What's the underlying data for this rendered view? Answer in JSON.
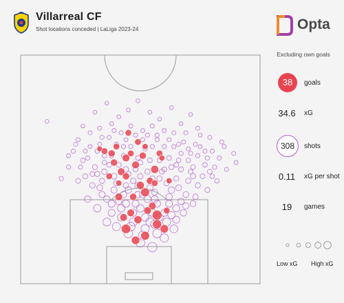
{
  "header": {
    "title": "Villarreal CF",
    "subtitle": "Shot locations conceded | LaLiga 2023-24"
  },
  "brand": {
    "name": "Opta"
  },
  "stats": {
    "note": "Excluding own goals",
    "goals_value": "38",
    "goals_label": "goals",
    "xg_value": "34.6",
    "xg_label": "xG",
    "shots_value": "308",
    "shots_label": "shots",
    "xg_per_shot_value": "0.11",
    "xg_per_shot_label": "xG per shot",
    "games_value": "19",
    "games_label": "games"
  },
  "legend": {
    "low": "Low xG",
    "high": "High xG"
  },
  "colors": {
    "background": "#f4f4f4",
    "goal": "#e8444f",
    "shot": "#b55ad0",
    "crest_yellow": "#f6d400",
    "crest_blue": "#1f3a8a",
    "opta_orange": "#f08a2c",
    "opta_purple": "#a43ea8"
  },
  "icons": {
    "crest": "villarreal-crest-icon",
    "brand": "opta-logo-icon"
  },
  "chart_data": {
    "type": "scatter",
    "x_units": "pitch width (0 = left touchline, 100 = right touchline)",
    "y_units": "distance from goal line (0 = goal line, 100 = halfway line)",
    "goals": [
      [
        44,
        24
      ],
      [
        52,
        21
      ],
      [
        57,
        30
      ],
      [
        49,
        28
      ],
      [
        60,
        24
      ],
      [
        55,
        34
      ],
      [
        47,
        38
      ],
      [
        52,
        40
      ],
      [
        42,
        49
      ],
      [
        44,
        47
      ],
      [
        56,
        50
      ],
      [
        58,
        57
      ],
      [
        44,
        55
      ],
      [
        39,
        53
      ],
      [
        52,
        60
      ],
      [
        35,
        58
      ],
      [
        49,
        62
      ],
      [
        41,
        38
      ],
      [
        45,
        66
      ],
      [
        41,
        44
      ],
      [
        57,
        26
      ],
      [
        48,
        19
      ],
      [
        38,
        57
      ],
      [
        53,
        32
      ],
      [
        61,
        32
      ],
      [
        50,
        43
      ],
      [
        46,
        31
      ],
      [
        43,
        29
      ],
      [
        59,
        55
      ],
      [
        37,
        47
      ],
      [
        54,
        45
      ],
      [
        48,
        52
      ],
      [
        40,
        60
      ],
      [
        46,
        57
      ],
      [
        56,
        44
      ],
      [
        51,
        56
      ],
      [
        62,
        45
      ],
      [
        33,
        59
      ]
    ],
    "goal_xg": [
      0.55,
      0.45,
      0.6,
      0.35,
      0.4,
      0.3,
      0.25,
      0.45,
      0.3,
      0.25,
      0.35,
      0.2,
      0.3,
      0.25,
      0.15,
      0.2,
      0.2,
      0.3,
      0.2,
      0.15,
      0.5,
      0.4,
      0.25,
      0.3,
      0.2,
      0.35,
      0.3,
      0.3,
      0.15,
      0.2,
      0.25,
      0.3,
      0.2,
      0.2,
      0.2,
      0.25,
      0.15,
      0.12
    ],
    "shots": [
      [
        22,
        58
      ],
      [
        17,
        46
      ],
      [
        11,
        71
      ],
      [
        23,
        61
      ],
      [
        25,
        51
      ],
      [
        28,
        55
      ],
      [
        30,
        48
      ],
      [
        34,
        45
      ],
      [
        33,
        61
      ],
      [
        35,
        56
      ],
      [
        37,
        64
      ],
      [
        38,
        70
      ],
      [
        40,
        61
      ],
      [
        41,
        52
      ],
      [
        43,
        60
      ],
      [
        43,
        56
      ],
      [
        44,
        43
      ],
      [
        45,
        48
      ],
      [
        46,
        60
      ],
      [
        47,
        45
      ],
      [
        48,
        50
      ],
      [
        49,
        55
      ],
      [
        50,
        47
      ],
      [
        50,
        53
      ],
      [
        51,
        63
      ],
      [
        52,
        59
      ],
      [
        53,
        49
      ],
      [
        54,
        54
      ],
      [
        55,
        46
      ],
      [
        55,
        60
      ],
      [
        56,
        40
      ],
      [
        57,
        65
      ],
      [
        58,
        54
      ],
      [
        59,
        49
      ],
      [
        60,
        60
      ],
      [
        61,
        44
      ],
      [
        62,
        55
      ],
      [
        63,
        51
      ],
      [
        64,
        60
      ],
      [
        65,
        46
      ],
      [
        66,
        54
      ],
      [
        67,
        50
      ],
      [
        68,
        62
      ],
      [
        70,
        54
      ],
      [
        71,
        57
      ],
      [
        72,
        51
      ],
      [
        73,
        61
      ],
      [
        74,
        56
      ],
      [
        75,
        65
      ],
      [
        77,
        52
      ],
      [
        79,
        49
      ],
      [
        80,
        58
      ],
      [
        83,
        55
      ],
      [
        85,
        60
      ],
      [
        90,
        53
      ],
      [
        20,
        56
      ],
      [
        26,
        69
      ],
      [
        31,
        75
      ],
      [
        36,
        79
      ],
      [
        41,
        73
      ],
      [
        45,
        76
      ],
      [
        49,
        80
      ],
      [
        54,
        75
      ],
      [
        58,
        72
      ],
      [
        63,
        77
      ],
      [
        67,
        70
      ],
      [
        71,
        74
      ],
      [
        28,
        37
      ],
      [
        32,
        33
      ],
      [
        36,
        27
      ],
      [
        40,
        25
      ],
      [
        45,
        22
      ],
      [
        50,
        18
      ],
      [
        55,
        16
      ],
      [
        60,
        20
      ],
      [
        64,
        24
      ],
      [
        68,
        31
      ],
      [
        72,
        35
      ],
      [
        30,
        43
      ],
      [
        34,
        39
      ],
      [
        38,
        35
      ],
      [
        42,
        33
      ],
      [
        47,
        27
      ],
      [
        52,
        24
      ],
      [
        57,
        22
      ],
      [
        61,
        27
      ],
      [
        65,
        33
      ],
      [
        69,
        39
      ],
      [
        74,
        43
      ],
      [
        78,
        41
      ],
      [
        27,
        47
      ],
      [
        31,
        51
      ],
      [
        35,
        49
      ],
      [
        39,
        47
      ],
      [
        43,
        39
      ],
      [
        48,
        35
      ],
      [
        53,
        37
      ],
      [
        57,
        35
      ],
      [
        62,
        38
      ],
      [
        66,
        42
      ],
      [
        70,
        45
      ],
      [
        76,
        47
      ],
      [
        82,
        45
      ],
      [
        24,
        63
      ],
      [
        29,
        66
      ],
      [
        33,
        68
      ],
      [
        38,
        56
      ],
      [
        42,
        66
      ],
      [
        46,
        69
      ],
      [
        51,
        67
      ],
      [
        55,
        69
      ],
      [
        60,
        67
      ],
      [
        64,
        66
      ],
      [
        69,
        66
      ],
      [
        74,
        68
      ],
      [
        79,
        64
      ],
      [
        84,
        62
      ],
      [
        26,
        54
      ],
      [
        32,
        58
      ],
      [
        37,
        52
      ],
      [
        44,
        50
      ],
      [
        49,
        43
      ],
      [
        54,
        42
      ],
      [
        58,
        46
      ],
      [
        63,
        41
      ],
      [
        67,
        57
      ],
      [
        72,
        47
      ],
      [
        78,
        55
      ],
      [
        86,
        50
      ],
      [
        89,
        57
      ],
      [
        33,
        42
      ],
      [
        39,
        41
      ],
      [
        45,
        41
      ],
      [
        51,
        39
      ],
      [
        56,
        37
      ],
      [
        62,
        35
      ],
      [
        67,
        36
      ],
      [
        42,
        29
      ],
      [
        47,
        31
      ],
      [
        52,
        29
      ],
      [
        58,
        29
      ],
      [
        63,
        30
      ],
      [
        38,
        31
      ],
      [
        36,
        37
      ],
      [
        40,
        44
      ],
      [
        60,
        50
      ],
      [
        65,
        52
      ],
      [
        71,
        49
      ],
      [
        75,
        60
      ],
      [
        81,
        51
      ],
      [
        29,
        60
      ],
      [
        34,
        64
      ],
      [
        39,
        67
      ],
      [
        44,
        63
      ],
      [
        48,
        65
      ],
      [
        53,
        65
      ],
      [
        57,
        63
      ],
      [
        62,
        63
      ],
      [
        66,
        61
      ],
      [
        70,
        59
      ],
      [
        44,
        35
      ],
      [
        50,
        33
      ],
      [
        55,
        31
      ],
      [
        49,
        39
      ],
      [
        54,
        27
      ],
      [
        46,
        25
      ],
      [
        51,
        21
      ],
      [
        56,
        26
      ],
      [
        60,
        31
      ],
      [
        41,
        36
      ],
      [
        35,
        53
      ],
      [
        32,
        48
      ],
      [
        27,
        58
      ],
      [
        24,
        45
      ],
      [
        20,
        51
      ],
      [
        77,
        58
      ],
      [
        80,
        47
      ],
      [
        73,
        38
      ],
      [
        69,
        34
      ],
      [
        65,
        28
      ]
    ],
    "shot_xg": [
      0.05,
      0.05,
      0.03,
      0.04,
      0.04,
      0.05,
      0.08,
      0.1,
      0.04,
      0.06,
      0.04,
      0.03,
      0.05,
      0.08,
      0.05,
      0.06,
      0.12,
      0.1,
      0.05,
      0.12,
      0.1,
      0.07,
      0.12,
      0.08,
      0.04,
      0.05,
      0.1,
      0.07,
      0.12,
      0.05,
      0.15,
      0.04,
      0.07,
      0.1,
      0.05,
      0.12,
      0.07,
      0.09,
      0.05,
      0.1,
      0.06,
      0.08,
      0.04,
      0.06,
      0.05,
      0.07,
      0.04,
      0.05,
      0.03,
      0.06,
      0.07,
      0.04,
      0.05,
      0.04,
      0.04,
      0.04,
      0.03,
      0.03,
      0.03,
      0.03,
      0.03,
      0.03,
      0.03,
      0.03,
      0.03,
      0.03,
      0.03,
      0.2,
      0.3,
      0.35,
      0.4,
      0.45,
      0.5,
      0.55,
      0.4,
      0.35,
      0.2,
      0.15,
      0.12,
      0.18,
      0.25,
      0.3,
      0.35,
      0.4,
      0.45,
      0.35,
      0.25,
      0.15,
      0.1,
      0.08,
      0.1,
      0.09,
      0.12,
      0.14,
      0.2,
      0.25,
      0.25,
      0.25,
      0.2,
      0.15,
      0.1,
      0.08,
      0.06,
      0.04,
      0.04,
      0.04,
      0.06,
      0.04,
      0.04,
      0.04,
      0.04,
      0.04,
      0.04,
      0.04,
      0.04,
      0.04,
      0.04,
      0.07,
      0.05,
      0.08,
      0.12,
      0.18,
      0.18,
      0.12,
      0.2,
      0.05,
      0.1,
      0.05,
      0.04,
      0.04,
      0.15,
      0.18,
      0.2,
      0.22,
      0.25,
      0.25,
      0.2,
      0.3,
      0.28,
      0.3,
      0.3,
      0.28,
      0.25,
      0.2,
      0.12,
      0.08,
      0.07,
      0.08,
      0.04,
      0.05,
      0.04,
      0.04,
      0.04,
      0.04,
      0.04,
      0.04,
      0.04,
      0.04,
      0.04,
      0.04,
      0.28,
      0.3,
      0.3,
      0.2,
      0.4,
      0.45,
      0.5,
      0.4,
      0.25,
      0.2,
      0.06,
      0.1,
      0.04,
      0.08,
      0.05,
      0.04,
      0.06,
      0.12,
      0.18,
      0.25
    ],
    "legend_sizes_xg": [
      0.05,
      0.15,
      0.3,
      0.6,
      1.0
    ]
  }
}
